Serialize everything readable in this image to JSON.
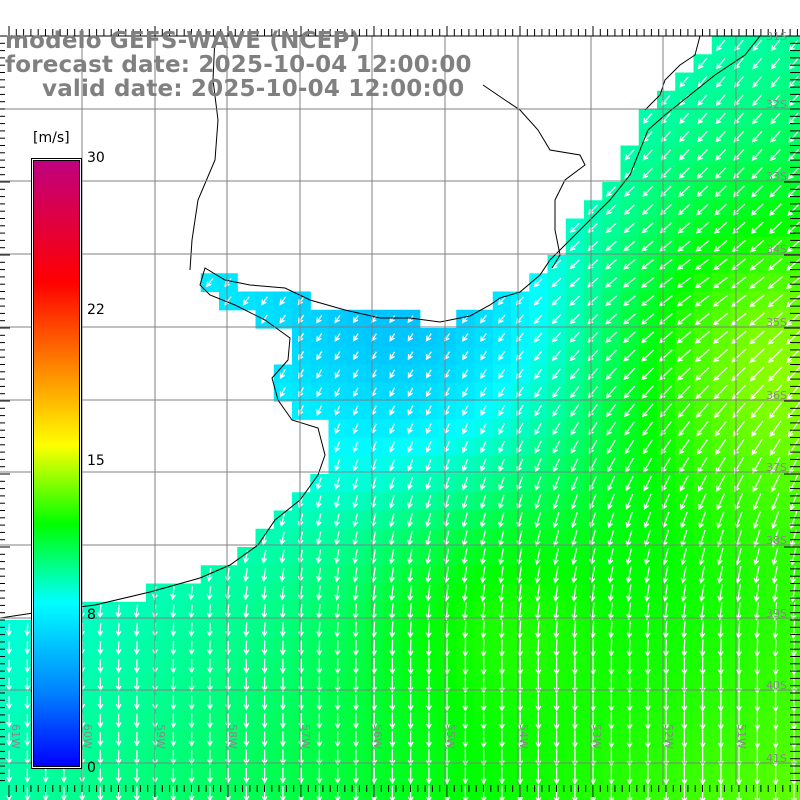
{
  "title": {
    "line1": "modelo GEFS-WAVE (NCEP)",
    "line2": "forecast date: 2025-10-04 12:00:00",
    "line3": "valid date: 2025-10-04 12:00:00"
  },
  "colorbar": {
    "unit": "[m/s]",
    "ticks": [
      "30",
      "22",
      "15",
      "8",
      "0"
    ],
    "range": [
      0,
      30
    ],
    "colors": {
      "min": "#0000ff",
      "low": "#0080ff",
      "cyan": "#00ffff",
      "green": "#00ff00",
      "yellow": "#ffff00",
      "red": "#ff0000",
      "max": "#c0007f"
    }
  },
  "axes": {
    "longitude_labels": [
      "61W",
      "60W",
      "59W",
      "58W",
      "57W",
      "56W",
      "55W",
      "54W",
      "53W",
      "52W",
      "51W"
    ],
    "latitude_labels": [
      "31S",
      "32S",
      "33S",
      "34S",
      "35S",
      "36S",
      "37S",
      "38S",
      "39S",
      "40S",
      "41S"
    ]
  },
  "field": {
    "variable": "wind speed and direction",
    "speed_range_shown": [
      5,
      15
    ],
    "arrow_color": "#ffffff",
    "land_color": "#ffffff",
    "coast_color": "#000000",
    "grid_color": "#808080"
  }
}
